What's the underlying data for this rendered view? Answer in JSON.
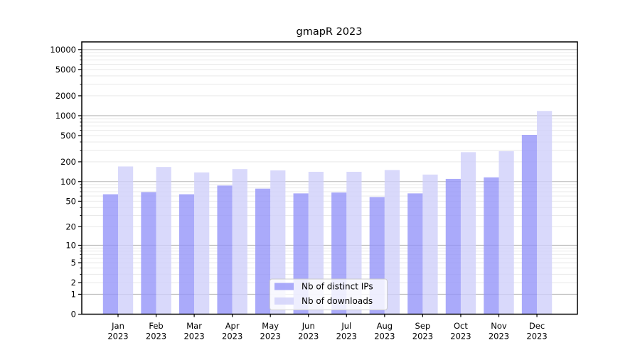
{
  "chart_data": {
    "type": "bar",
    "title": "gmapR 2023",
    "categories": [
      "Jan",
      "Feb",
      "Mar",
      "Apr",
      "May",
      "Jun",
      "Jul",
      "Aug",
      "Sep",
      "Oct",
      "Nov",
      "Dec"
    ],
    "x_year": "2023",
    "series": [
      {
        "name": "Nb of distinct IPs",
        "color": "rgba(149,149,249,0.8)",
        "values": [
          64,
          69,
          64,
          87,
          78,
          66,
          68,
          58,
          66,
          110,
          116,
          512
        ]
      },
      {
        "name": "Nb of downloads",
        "color": "rgba(208,208,250,0.8)",
        "values": [
          170,
          167,
          138,
          155,
          148,
          141,
          141,
          150,
          128,
          280,
          290,
          1180
        ]
      }
    ],
    "y_scale": "log10(value+1)",
    "y_ticks": [
      0,
      1,
      2,
      5,
      10,
      20,
      50,
      100,
      200,
      500,
      1000,
      2000,
      5000,
      10000
    ],
    "y_major_gridlines": [
      1,
      10,
      100,
      1000,
      10000
    ],
    "ylim": [
      0,
      12000
    ],
    "grid": true,
    "legend_position": "bottom-center"
  },
  "colors": {
    "major_grid": "#b9b9b9",
    "minor_grid": "#e9e9e9",
    "spine": "#000000",
    "legend_bg": "rgba(255,255,255,0.8)",
    "legend_border": "#cccccc"
  }
}
